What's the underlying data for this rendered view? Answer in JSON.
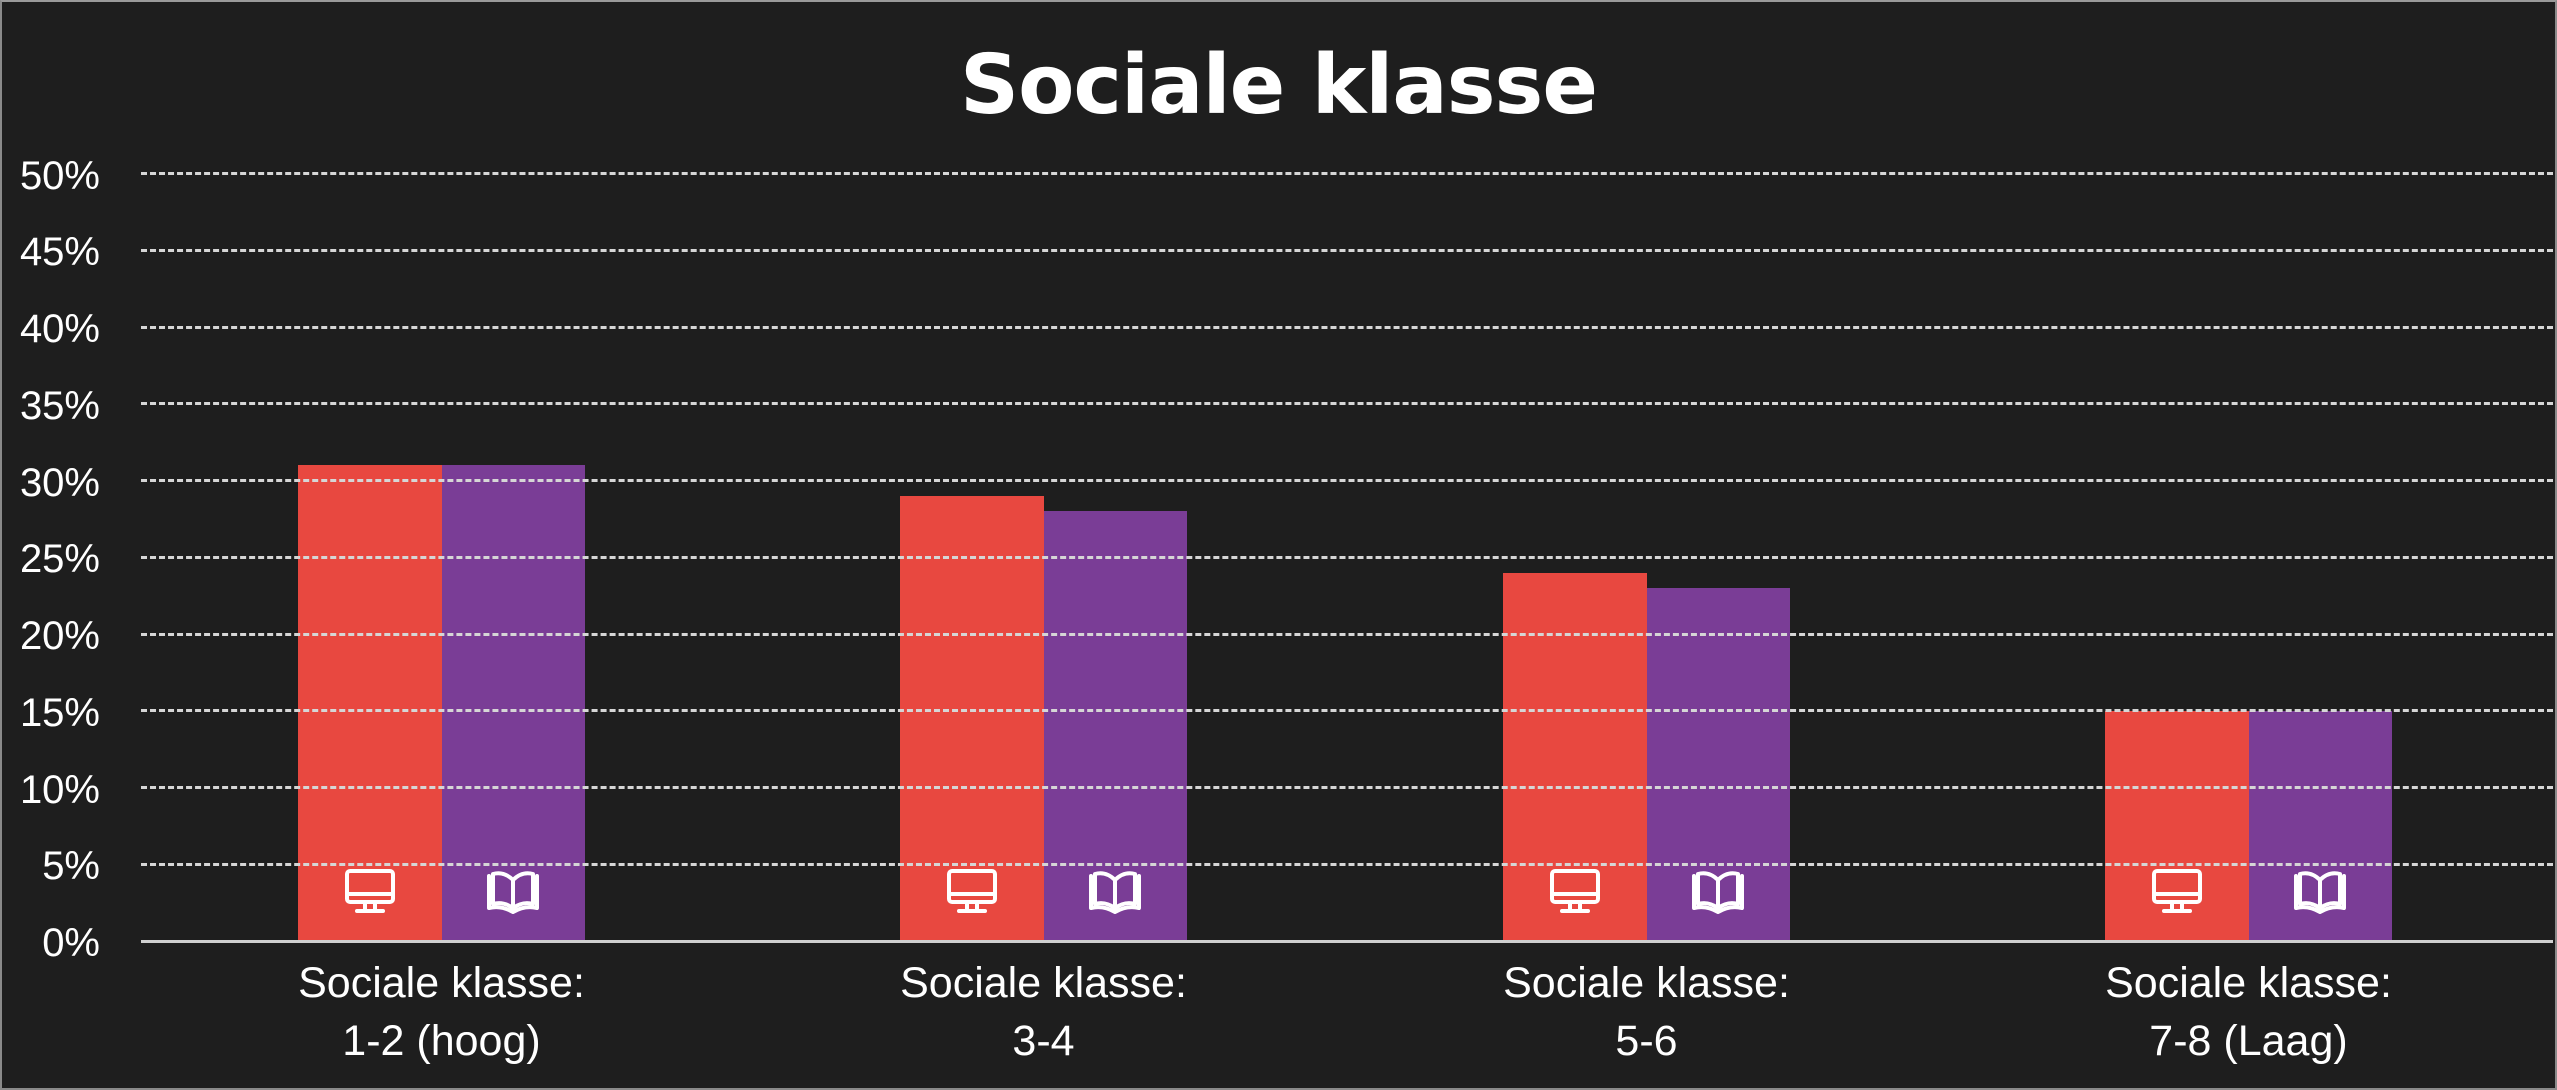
{
  "title": "Sociale klasse",
  "colors": {
    "background": "#1e1e1e",
    "series_online": "#e84840",
    "series_print": "#7a3d96",
    "grid": "#d6d6d6",
    "text": "#ffffff"
  },
  "y_axis": {
    "ticks": [
      "50%",
      "45%",
      "40%",
      "35%",
      "30%",
      "25%",
      "20%",
      "15%",
      "10%",
      "5%",
      "0%"
    ]
  },
  "x_axis": {
    "categories": [
      {
        "line1": "Sociale klasse:",
        "line2": "1-2 (hoog)"
      },
      {
        "line1": "Sociale klasse:",
        "line2": "3-4"
      },
      {
        "line1": "Sociale klasse:",
        "line2": "5-6"
      },
      {
        "line1": "Sociale klasse:",
        "line2": "7-8 (Laag)"
      }
    ]
  },
  "series_icons": [
    "monitor-icon",
    "book-icon"
  ],
  "chart_data": {
    "type": "bar",
    "title": "Sociale klasse",
    "xlabel": "",
    "ylabel": "",
    "categories": [
      "Sociale klasse: 1-2 (hoog)",
      "Sociale klasse: 3-4",
      "Sociale klasse: 5-6",
      "Sociale klasse: 7-8 (Laag)"
    ],
    "series": [
      {
        "name": "Online (monitor icon)",
        "color": "#e84840",
        "values": [
          31,
          29,
          24,
          15
        ]
      },
      {
        "name": "Print (book icon)",
        "color": "#7a3d96",
        "values": [
          31,
          28,
          23,
          15
        ]
      }
    ],
    "ylim": [
      0,
      50
    ],
    "yticks": [
      0,
      5,
      10,
      15,
      20,
      25,
      30,
      35,
      40,
      45,
      50
    ],
    "ytick_format": "percent",
    "grid": true,
    "grid_style": "dashed",
    "legend": "none (series indicated by icons inside bars)"
  }
}
